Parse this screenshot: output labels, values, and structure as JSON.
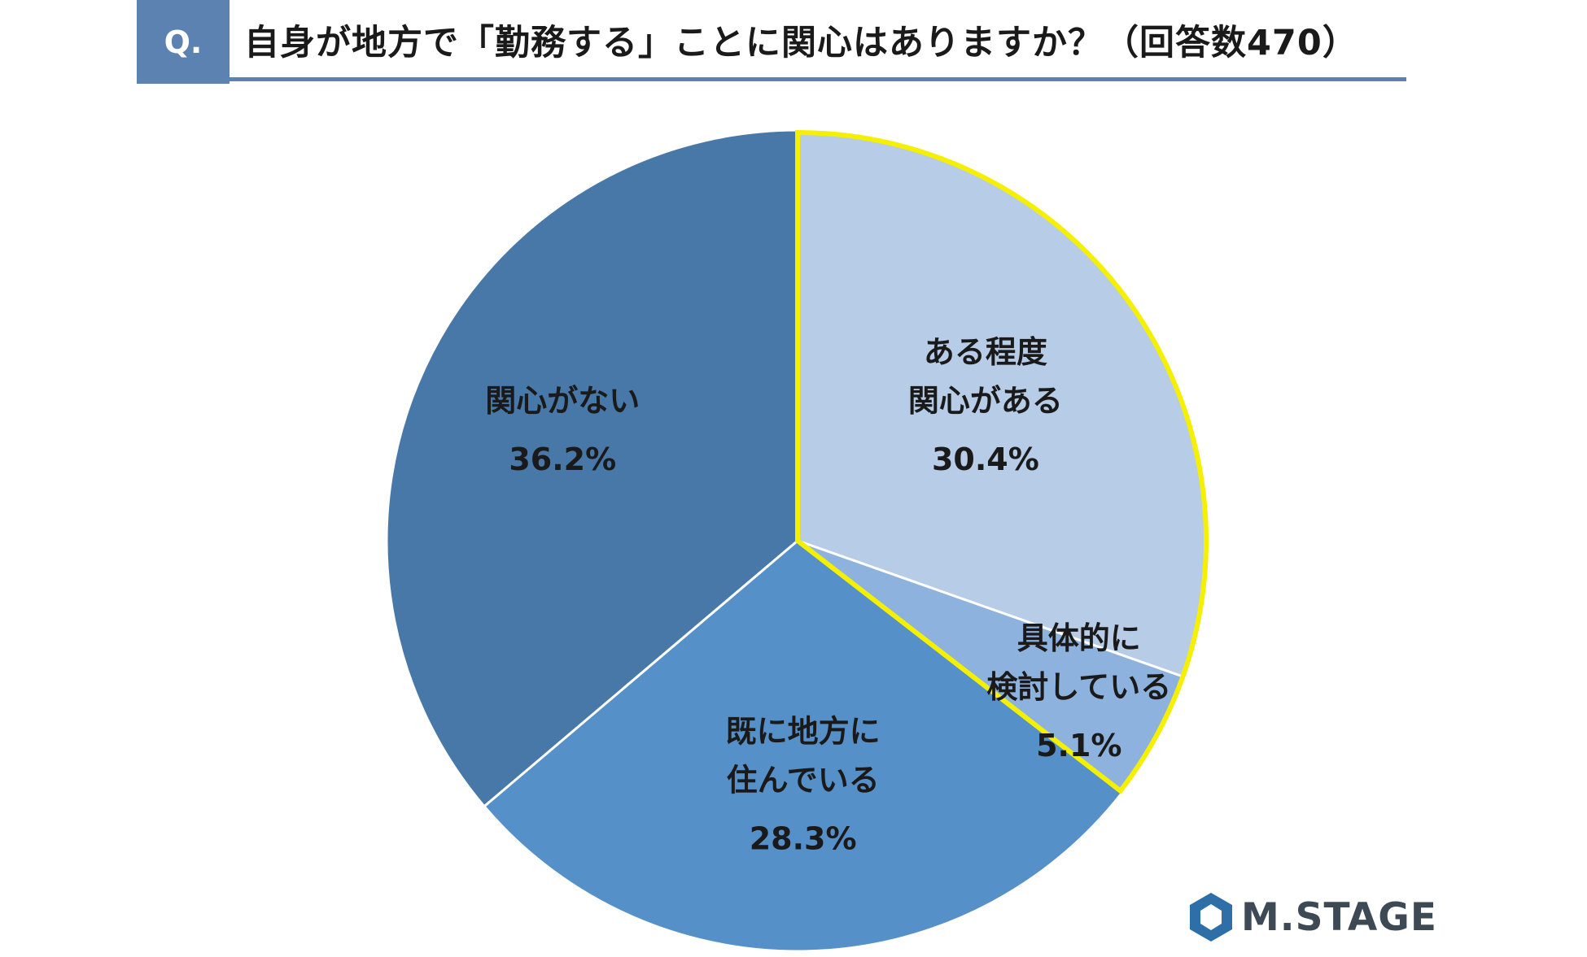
{
  "header": {
    "badge": "Q.",
    "title": "自身が地方で「勤務する」ことに関心はありますか？（回答数470）"
  },
  "chart_data": {
    "type": "pie",
    "title": "自身が地方で「勤務する」ことに関心はありますか？（回答数470）",
    "slices": [
      {
        "label_lines": [
          "ある程度",
          "関心がある"
        ],
        "value": 30.4,
        "value_label": "30.4%",
        "color": "#b7cce7",
        "highlight": true
      },
      {
        "label_lines": [
          "具体的に",
          "検討している"
        ],
        "value": 5.1,
        "value_label": "5.1%",
        "color": "#8eb2de",
        "highlight": true
      },
      {
        "label_lines": [
          "既に地方に",
          "住んでいる"
        ],
        "value": 28.3,
        "value_label": "28.3%",
        "color": "#5690c8",
        "highlight": false
      },
      {
        "label_lines": [
          "関心がない"
        ],
        "value": 36.2,
        "value_label": "36.2%",
        "color": "#4878a8",
        "highlight": false
      }
    ],
    "highlight_color": "#f5f000"
  },
  "logo": {
    "text": "M.STAGE"
  }
}
